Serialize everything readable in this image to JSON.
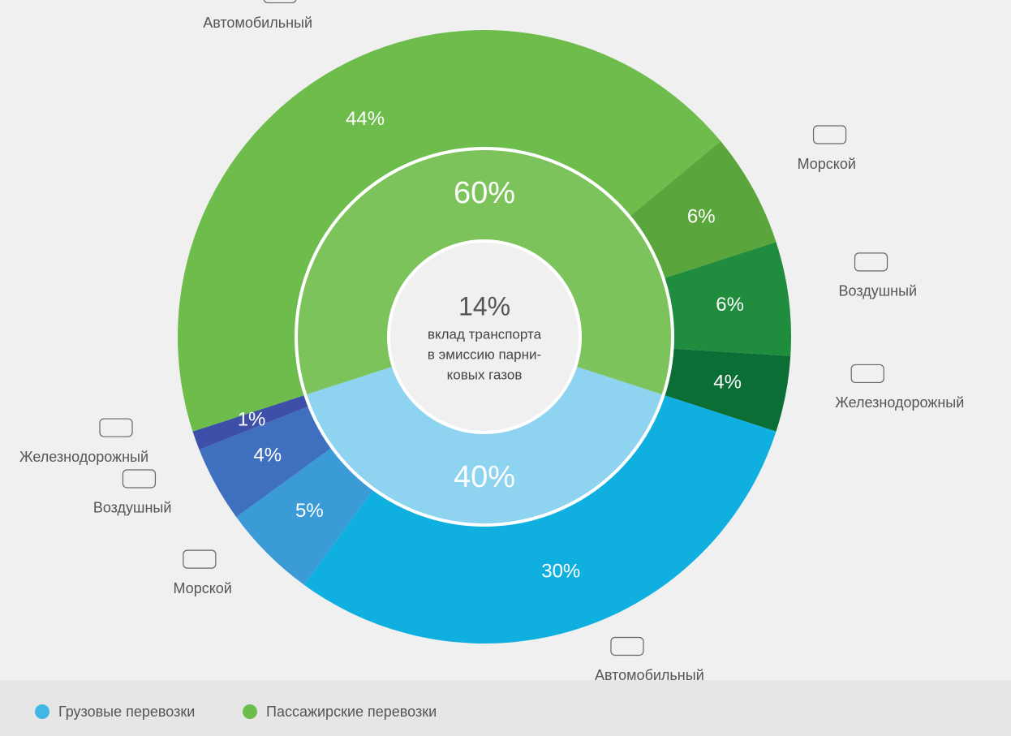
{
  "chart_data": {
    "type": "donut",
    "center_value": 14,
    "center_value_label": "14%",
    "center_text": [
      "вклад транспорта",
      "в эмиссию парни-",
      "ковых газов"
    ],
    "series": [
      {
        "name": "Грузовые перевозки",
        "color": "#3fb8e6",
        "inner_color": "#8ed3f0",
        "value": 40,
        "value_label": "40%",
        "categories": [
          "Автомобильный",
          "Морской",
          "Воздушный",
          "Железнодорожный"
        ],
        "values": [
          30,
          5,
          4,
          1
        ],
        "value_labels": [
          "30%",
          "5%",
          "4%",
          "1%"
        ],
        "colors": [
          "#0fb0e0",
          "#3a9bd6",
          "#3f6fbf",
          "#3d4fa8"
        ]
      },
      {
        "name": "Пассажирские перевозки",
        "color": "#6cbd4c",
        "inner_color": "#7cc35c",
        "value": 60,
        "value_label": "60%",
        "categories": [
          "Автомобильный",
          "Морской",
          "Воздушный",
          "Железнодорожный"
        ],
        "values": [
          44,
          6,
          6,
          4
        ],
        "value_labels": [
          "44%",
          "6%",
          "6%",
          "4%"
        ],
        "colors": [
          "#6ebd4c",
          "#5aa63c",
          "#1f8d3d",
          "#0b6e35"
        ]
      }
    ]
  }
}
